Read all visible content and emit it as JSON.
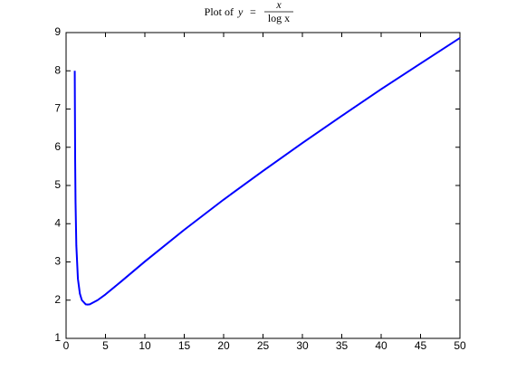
{
  "chart_data": {
    "type": "line",
    "title": "Plot of",
    "title_variable": "y",
    "title_equals": "=",
    "title_numerator": "x",
    "title_denominator": "log x",
    "x": [
      1.1,
      1.15,
      1.2,
      1.3,
      1.5,
      1.75,
      2,
      2.5,
      2.718,
      3,
      4,
      5,
      7,
      10,
      15,
      20,
      25,
      30,
      35,
      40,
      45,
      50
    ],
    "series": [
      {
        "color": "#0000ff",
        "values": [
          8.0,
          5.7,
          4.56,
          3.43,
          2.56,
          2.17,
          2.0,
          1.89,
          1.884,
          1.89,
          2.0,
          2.15,
          2.49,
          3.01,
          3.84,
          4.63,
          5.38,
          6.11,
          6.82,
          7.52,
          8.19,
          8.86
        ]
      }
    ],
    "xlim": [
      0,
      50
    ],
    "xticks": [
      0,
      5,
      10,
      15,
      20,
      25,
      30,
      35,
      40,
      45,
      50
    ],
    "ylim": [
      1,
      9
    ],
    "yticks": [
      1,
      2,
      3,
      4,
      5,
      6,
      7,
      8,
      9
    ],
    "grid": false
  }
}
